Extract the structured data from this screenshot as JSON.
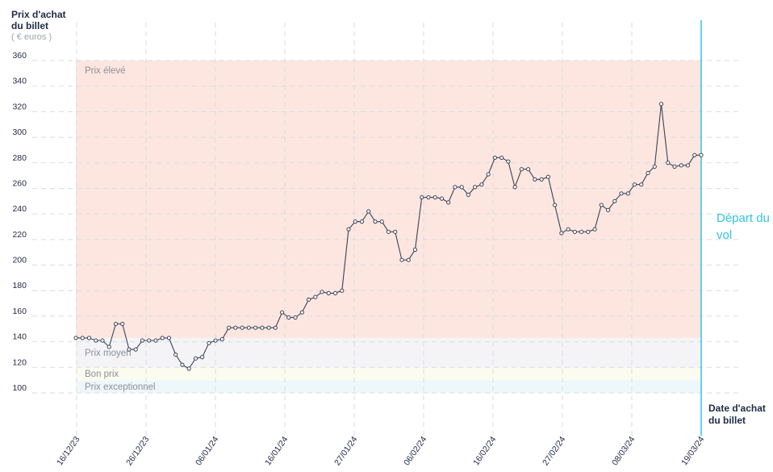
{
  "y_axis": {
    "title": "Prix d'achat du billet",
    "unit": "( € euros )"
  },
  "x_axis": {
    "title": "Date d'achat du billet"
  },
  "departure_label": "Départ du vol",
  "zones": [
    {
      "name": "Prix élevé",
      "from": 143,
      "to": 360,
      "color": "#fde6e0"
    },
    {
      "name": "Prix moyen",
      "from": 120,
      "to": 143,
      "color": "#f4f4f6"
    },
    {
      "name": "Bon prix",
      "from": 110,
      "to": 120,
      "color": "#fbfbef"
    },
    {
      "name": "Prix exceptionnel",
      "from": 100,
      "to": 110,
      "color": "#eef8fb"
    }
  ],
  "colors": {
    "line": "#3a4256",
    "departure": "#33c3e0",
    "grid": "#d9dbe0"
  },
  "chart_data": {
    "type": "line",
    "xlabel": "Date d'achat du billet",
    "ylabel": "Prix d'achat du billet",
    "ylim": [
      100,
      360
    ],
    "yticks": [
      100,
      120,
      140,
      160,
      180,
      200,
      220,
      240,
      260,
      280,
      300,
      320,
      340,
      360
    ],
    "x_start": "2023-12-16",
    "x_end": "2024-03-19",
    "xticks": [
      "16/12/23",
      "26/12/23",
      "06/01/24",
      "16/01/24",
      "27/01/24",
      "06/02/24",
      "16/02/24",
      "27/02/24",
      "08/03/24",
      "19/03/24"
    ],
    "grid": true,
    "values": [
      143,
      143,
      143,
      141,
      141,
      136,
      154,
      154,
      134,
      134,
      141,
      141,
      141,
      143,
      143,
      130,
      122,
      119,
      127,
      128,
      139,
      141,
      142,
      151,
      151,
      151,
      151,
      151,
      151,
      151,
      151,
      163,
      159,
      159,
      163,
      173,
      175,
      179,
      178,
      178,
      180,
      228,
      234,
      234,
      242,
      234,
      234,
      226,
      226,
      204,
      204,
      212,
      253,
      253,
      253,
      252,
      249,
      261,
      261,
      255,
      261,
      263,
      271,
      284,
      284,
      281,
      261,
      275,
      275,
      267,
      267,
      269,
      247,
      225,
      228,
      226,
      226,
      226,
      228,
      247,
      243,
      250,
      256,
      256,
      263,
      263,
      272,
      277,
      326,
      280,
      277,
      278,
      278,
      286,
      286
    ]
  }
}
